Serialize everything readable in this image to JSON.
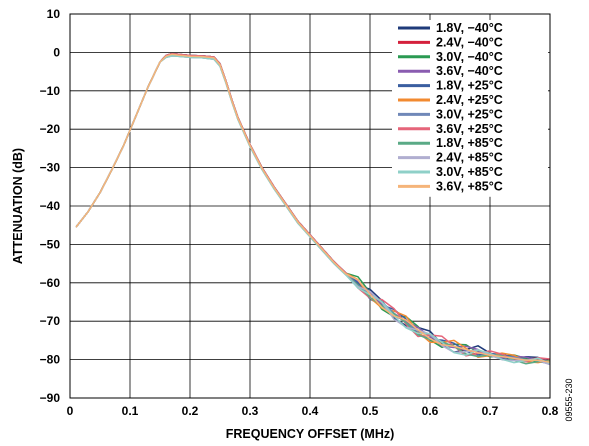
{
  "figure_id": "09555-230",
  "chart_data": {
    "type": "line",
    "title": "",
    "xlabel": "FREQUENCY OFFSET (MHz)",
    "ylabel": "ATTENUATION (dB)",
    "xlim": [
      0,
      0.8
    ],
    "ylim": [
      -90,
      10
    ],
    "x_ticks": [
      "0",
      "0.1",
      "0.2",
      "0.3",
      "0.4",
      "0.5",
      "0.6",
      "0.7",
      "0.8"
    ],
    "y_ticks": [
      "10",
      "0",
      "−10",
      "−20",
      "−30",
      "−40",
      "−50",
      "−60",
      "−70",
      "−80",
      "−90"
    ],
    "grid": true,
    "legend_position": "top-right",
    "x": [
      0.01,
      0.03,
      0.05,
      0.07,
      0.09,
      0.11,
      0.13,
      0.15,
      0.16,
      0.17,
      0.18,
      0.2,
      0.22,
      0.24,
      0.25,
      0.26,
      0.27,
      0.28,
      0.3,
      0.32,
      0.34,
      0.36,
      0.38,
      0.4,
      0.42,
      0.44,
      0.46,
      0.48,
      0.5,
      0.52,
      0.54,
      0.56,
      0.58,
      0.6,
      0.62,
      0.64,
      0.66,
      0.68,
      0.7,
      0.72,
      0.74,
      0.76,
      0.78,
      0.8
    ],
    "series": [
      {
        "name": "1.8V, −40°C",
        "color": "#1f3b7a",
        "values": [
          -45.5,
          -41.5,
          -36.5,
          -30.5,
          -24.0,
          -16.5,
          -9.0,
          -2.5,
          -0.8,
          -0.3,
          -0.5,
          -0.8,
          -0.9,
          -1.2,
          -3.0,
          -7.5,
          -12.5,
          -17.0,
          -24.0,
          -30.0,
          -35.0,
          -39.5,
          -44.0,
          -47.5,
          -51.0,
          -54.5,
          -57.5,
          -60.0,
          -63.0,
          -65.5,
          -68.0,
          -70.0,
          -72.5,
          -74.0,
          -75.5,
          -76.5,
          -77.5,
          -78.0,
          -78.5,
          -79.0,
          -79.5,
          -80.0,
          -80.0,
          -80.5
        ]
      },
      {
        "name": "2.4V, −40°C",
        "color": "#d4203c",
        "values": [
          -45.5,
          -41.5,
          -36.5,
          -30.5,
          -24.0,
          -16.5,
          -9.0,
          -2.5,
          -0.8,
          -0.3,
          -0.5,
          -0.8,
          -0.9,
          -1.2,
          -3.0,
          -7.5,
          -12.5,
          -17.0,
          -24.0,
          -30.0,
          -35.0,
          -39.5,
          -44.0,
          -47.5,
          -51.0,
          -54.5,
          -57.5,
          -60.0,
          -63.0,
          -65.5,
          -68.0,
          -70.0,
          -72.5,
          -74.0,
          -75.5,
          -76.5,
          -77.5,
          -78.0,
          -78.5,
          -79.0,
          -79.5,
          -80.0,
          -80.0,
          -80.5
        ]
      },
      {
        "name": "3.0V, −40°C",
        "color": "#2a9a52",
        "values": [
          -45.5,
          -41.5,
          -36.5,
          -30.5,
          -24.0,
          -16.5,
          -9.0,
          -2.5,
          -0.8,
          -0.3,
          -0.5,
          -0.8,
          -0.9,
          -1.2,
          -3.0,
          -7.5,
          -12.5,
          -17.0,
          -24.0,
          -30.0,
          -35.0,
          -39.5,
          -44.0,
          -47.5,
          -51.0,
          -54.5,
          -57.5,
          -60.0,
          -63.0,
          -65.5,
          -68.0,
          -70.0,
          -72.5,
          -74.0,
          -75.5,
          -76.5,
          -77.5,
          -78.0,
          -78.5,
          -79.0,
          -79.5,
          -80.0,
          -80.0,
          -80.5
        ]
      },
      {
        "name": "3.6V, −40°C",
        "color": "#8a5cb0",
        "values": [
          -45.5,
          -41.5,
          -36.5,
          -30.5,
          -24.0,
          -16.5,
          -9.0,
          -2.5,
          -0.8,
          -0.3,
          -0.5,
          -0.8,
          -0.9,
          -1.2,
          -3.0,
          -7.5,
          -12.5,
          -17.0,
          -24.0,
          -30.0,
          -35.0,
          -39.5,
          -44.0,
          -47.5,
          -51.0,
          -54.5,
          -57.5,
          -60.0,
          -63.0,
          -65.5,
          -68.0,
          -70.0,
          -72.5,
          -74.0,
          -75.5,
          -76.5,
          -77.5,
          -78.0,
          -78.5,
          -79.0,
          -79.5,
          -80.0,
          -80.0,
          -80.5
        ]
      },
      {
        "name": "1.8V, +25°C",
        "color": "#3a5ea0",
        "values": [
          -45.5,
          -41.5,
          -36.5,
          -30.5,
          -24.0,
          -16.5,
          -9.0,
          -2.5,
          -0.8,
          -0.3,
          -0.5,
          -0.8,
          -0.9,
          -1.2,
          -3.0,
          -7.5,
          -12.5,
          -17.0,
          -24.0,
          -30.0,
          -35.0,
          -39.5,
          -44.0,
          -47.5,
          -51.0,
          -54.5,
          -57.5,
          -60.0,
          -63.0,
          -65.5,
          -68.0,
          -70.0,
          -72.5,
          -74.0,
          -75.5,
          -76.5,
          -77.5,
          -78.0,
          -78.5,
          -79.0,
          -79.5,
          -80.0,
          -80.0,
          -80.5
        ]
      },
      {
        "name": "2.4V, +25°C",
        "color": "#f28a30",
        "values": [
          -45.5,
          -41.5,
          -36.5,
          -30.5,
          -24.0,
          -16.5,
          -9.0,
          -2.5,
          -0.8,
          -0.3,
          -0.5,
          -0.8,
          -0.9,
          -1.2,
          -3.0,
          -7.5,
          -12.5,
          -17.0,
          -24.0,
          -30.0,
          -35.0,
          -39.5,
          -44.0,
          -47.5,
          -51.0,
          -54.5,
          -57.5,
          -60.0,
          -63.0,
          -65.5,
          -68.0,
          -70.0,
          -72.5,
          -74.0,
          -75.5,
          -76.5,
          -77.5,
          -78.0,
          -78.5,
          -79.0,
          -79.5,
          -80.0,
          -80.0,
          -80.5
        ]
      },
      {
        "name": "3.0V, +25°C",
        "color": "#7088b8",
        "values": [
          -45.5,
          -41.5,
          -36.5,
          -30.5,
          -24.0,
          -16.5,
          -9.0,
          -2.5,
          -0.8,
          -0.3,
          -0.5,
          -0.8,
          -0.9,
          -1.2,
          -3.0,
          -7.5,
          -12.5,
          -17.0,
          -24.0,
          -30.0,
          -35.0,
          -39.5,
          -44.0,
          -47.5,
          -51.0,
          -54.5,
          -57.5,
          -60.0,
          -63.0,
          -65.5,
          -68.0,
          -70.0,
          -72.5,
          -74.0,
          -75.5,
          -76.5,
          -77.5,
          -78.0,
          -78.5,
          -79.0,
          -79.5,
          -80.0,
          -80.0,
          -80.5
        ]
      },
      {
        "name": "3.6V, +25°C",
        "color": "#e5657a",
        "values": [
          -45.5,
          -41.5,
          -36.5,
          -30.5,
          -24.0,
          -16.5,
          -9.0,
          -2.5,
          -0.8,
          -0.3,
          -0.5,
          -0.8,
          -0.9,
          -1.2,
          -3.0,
          -7.5,
          -12.5,
          -17.0,
          -24.0,
          -30.0,
          -35.0,
          -39.5,
          -44.0,
          -47.5,
          -51.0,
          -54.5,
          -57.5,
          -60.0,
          -63.0,
          -65.5,
          -68.0,
          -70.0,
          -72.5,
          -74.0,
          -75.5,
          -76.5,
          -77.5,
          -78.0,
          -78.5,
          -79.0,
          -79.5,
          -80.0,
          -80.0,
          -80.5
        ]
      },
      {
        "name": "1.8V, +85°C",
        "color": "#5aaa86",
        "values": [
          -45.5,
          -41.5,
          -36.5,
          -30.5,
          -24.0,
          -16.5,
          -9.0,
          -2.5,
          -1.3,
          -0.9,
          -1.0,
          -1.3,
          -1.4,
          -1.8,
          -3.6,
          -8.0,
          -13.0,
          -17.5,
          -24.5,
          -30.5,
          -35.5,
          -40.0,
          -44.5,
          -48.0,
          -51.5,
          -55.0,
          -58.0,
          -60.5,
          -63.5,
          -66.0,
          -68.5,
          -70.5,
          -73.0,
          -74.5,
          -76.0,
          -77.0,
          -78.0,
          -78.5,
          -79.0,
          -79.5,
          -80.0,
          -80.5,
          -80.5,
          -81.0
        ]
      },
      {
        "name": "2.4V, +85°C",
        "color": "#b0aed0",
        "values": [
          -45.5,
          -41.5,
          -36.5,
          -30.5,
          -24.0,
          -16.5,
          -9.0,
          -2.5,
          -1.3,
          -0.9,
          -1.0,
          -1.3,
          -1.4,
          -1.8,
          -3.6,
          -8.0,
          -13.0,
          -17.5,
          -24.5,
          -30.5,
          -35.5,
          -40.0,
          -44.5,
          -48.0,
          -51.5,
          -55.0,
          -58.0,
          -60.5,
          -63.5,
          -66.0,
          -68.5,
          -70.5,
          -73.0,
          -74.5,
          -76.0,
          -77.0,
          -78.0,
          -78.5,
          -79.0,
          -79.5,
          -80.0,
          -80.5,
          -80.5,
          -81.0
        ]
      },
      {
        "name": "3.0V, +85°C",
        "color": "#8fd0c8",
        "values": [
          -45.5,
          -41.5,
          -36.5,
          -30.5,
          -24.0,
          -16.5,
          -9.0,
          -2.5,
          -1.3,
          -0.9,
          -1.0,
          -1.3,
          -1.4,
          -1.8,
          -3.6,
          -8.0,
          -13.0,
          -17.5,
          -24.5,
          -30.5,
          -35.5,
          -40.0,
          -44.5,
          -48.0,
          -51.5,
          -55.0,
          -58.0,
          -60.5,
          -63.5,
          -66.0,
          -68.5,
          -70.5,
          -73.0,
          -74.5,
          -76.0,
          -77.0,
          -78.0,
          -78.5,
          -79.0,
          -79.5,
          -80.0,
          -80.5,
          -80.5,
          -81.0
        ]
      },
      {
        "name": "3.6V, +85°C",
        "color": "#f5b47a",
        "values": [
          -45.5,
          -41.5,
          -36.5,
          -30.5,
          -24.0,
          -16.5,
          -9.0,
          -2.5,
          -1.0,
          -0.5,
          -0.7,
          -1.0,
          -1.1,
          -1.4,
          -3.2,
          -7.7,
          -12.7,
          -17.2,
          -24.2,
          -30.2,
          -35.2,
          -39.7,
          -44.2,
          -47.7,
          -51.2,
          -54.7,
          -57.7,
          -60.2,
          -63.2,
          -65.7,
          -68.2,
          -70.2,
          -72.7,
          -74.2,
          -75.7,
          -76.7,
          -77.7,
          -78.2,
          -78.7,
          -79.2,
          -79.7,
          -80.2,
          -80.2,
          -80.7
        ]
      }
    ]
  }
}
